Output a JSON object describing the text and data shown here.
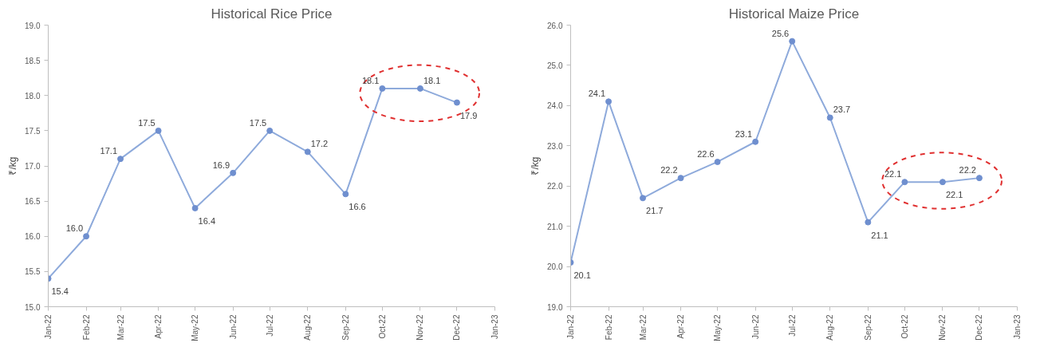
{
  "chart_data": [
    {
      "type": "line",
      "title": "Historical Rice Price",
      "ylabel": "₹/kg",
      "x": [
        "2022-01",
        "2022-02",
        "2022-03",
        "2022-04",
        "2022-05",
        "2022-06",
        "2022-07",
        "2022-08",
        "2022-09",
        "2022-10",
        "2022-11",
        "2022-12"
      ],
      "series": [
        {
          "color": "#6f8fcf",
          "values": [
            15.4,
            16.0,
            17.1,
            17.5,
            16.4,
            16.9,
            17.5,
            17.2,
            16.6,
            18.1,
            18.1,
            17.9
          ],
          "value_labels": [
            "15.4",
            "16.0",
            "17.1",
            "17.5",
            "16.4",
            "16.9",
            "17.5",
            "17.2",
            "16.6",
            "18.1",
            "18.1",
            "17.9"
          ]
        }
      ],
      "marker": "circle",
      "line_style": "solid",
      "grid": false,
      "xlim": [
        "2022-01",
        "2023-01"
      ],
      "xticks": [
        {
          "value": "2022-01",
          "label": "Jan-22"
        },
        {
          "value": "2022-02",
          "label": "Feb-22"
        },
        {
          "value": "2022-03",
          "label": "Mar-22"
        },
        {
          "value": "2022-04",
          "label": "Apr-22"
        },
        {
          "value": "2022-05",
          "label": "May-22"
        },
        {
          "value": "2022-06",
          "label": "Jun-22"
        },
        {
          "value": "2022-07",
          "label": "Jul-22"
        },
        {
          "value": "2022-08",
          "label": "Aug-22"
        },
        {
          "value": "2022-09",
          "label": "Sep-22"
        },
        {
          "value": "2022-10",
          "label": "Oct-22"
        },
        {
          "value": "2022-11",
          "label": "Nov-22"
        },
        {
          "value": "2022-12",
          "label": "Dec-22"
        },
        {
          "value": "2023-01",
          "label": "Jan-23"
        }
      ],
      "ylim": [
        15,
        19
      ],
      "yticks": [
        {
          "value": 15,
          "label": "15.0"
        },
        {
          "value": 15.5,
          "label": "15.5"
        },
        {
          "value": 16,
          "label": "16.0"
        },
        {
          "value": 16.5,
          "label": "16.5"
        },
        {
          "value": 17,
          "label": "17.0"
        },
        {
          "value": 17.5,
          "label": "17.5"
        },
        {
          "value": 18,
          "label": "18.0"
        },
        {
          "value": 18.5,
          "label": "18.5"
        },
        {
          "value": 19,
          "label": "19.0"
        }
      ]
    },
    {
      "type": "line",
      "title": "Historical Maize Price",
      "ylabel": "₹/kg",
      "x": [
        "2022-01",
        "2022-02",
        "2022-03",
        "2022-04",
        "2022-05",
        "2022-06",
        "2022-07",
        "2022-08",
        "2022-09",
        "2022-10",
        "2022-11",
        "2022-12"
      ],
      "series": [
        {
          "color": "#6f8fcf",
          "values": [
            20.1,
            24.1,
            21.7,
            22.2,
            22.6,
            23.1,
            25.6,
            23.7,
            21.1,
            22.1,
            22.1,
            22.2
          ],
          "value_labels": [
            "20.1",
            "24.1",
            "21.7",
            "22.2",
            "22.6",
            "23.1",
            "25.6",
            "23.7",
            "21.1",
            "22.1",
            "22.1",
            "22.2"
          ]
        }
      ],
      "marker": "circle",
      "line_style": "solid",
      "grid": false,
      "xlim": [
        "2022-01",
        "2023-01"
      ],
      "xticks": [
        {
          "value": "2022-01",
          "label": "Jan-22"
        },
        {
          "value": "2022-02",
          "label": "Feb-22"
        },
        {
          "value": "2022-03",
          "label": "Mar-22"
        },
        {
          "value": "2022-04",
          "label": "Apr-22"
        },
        {
          "value": "2022-05",
          "label": "May-22"
        },
        {
          "value": "2022-06",
          "label": "Jun-22"
        },
        {
          "value": "2022-07",
          "label": "Jul-22"
        },
        {
          "value": "2022-08",
          "label": "Aug-22"
        },
        {
          "value": "2022-09",
          "label": "Sep-22"
        },
        {
          "value": "2022-10",
          "label": "Oct-22"
        },
        {
          "value": "2022-11",
          "label": "Nov-22"
        },
        {
          "value": "2022-12",
          "label": "Dec-22"
        },
        {
          "value": "2023-01",
          "label": "Jan-23"
        }
      ],
      "ylim": [
        19,
        26
      ],
      "yticks": [
        {
          "value": 19,
          "label": "19.0"
        },
        {
          "value": 20,
          "label": "20.0"
        },
        {
          "value": 21,
          "label": "21.0"
        },
        {
          "value": 22,
          "label": "22.0"
        },
        {
          "value": 23,
          "label": "23.0"
        },
        {
          "value": 24,
          "label": "24.0"
        },
        {
          "value": 25,
          "label": "25.0"
        },
        {
          "value": 26,
          "label": "26.0"
        }
      ]
    }
  ]
}
